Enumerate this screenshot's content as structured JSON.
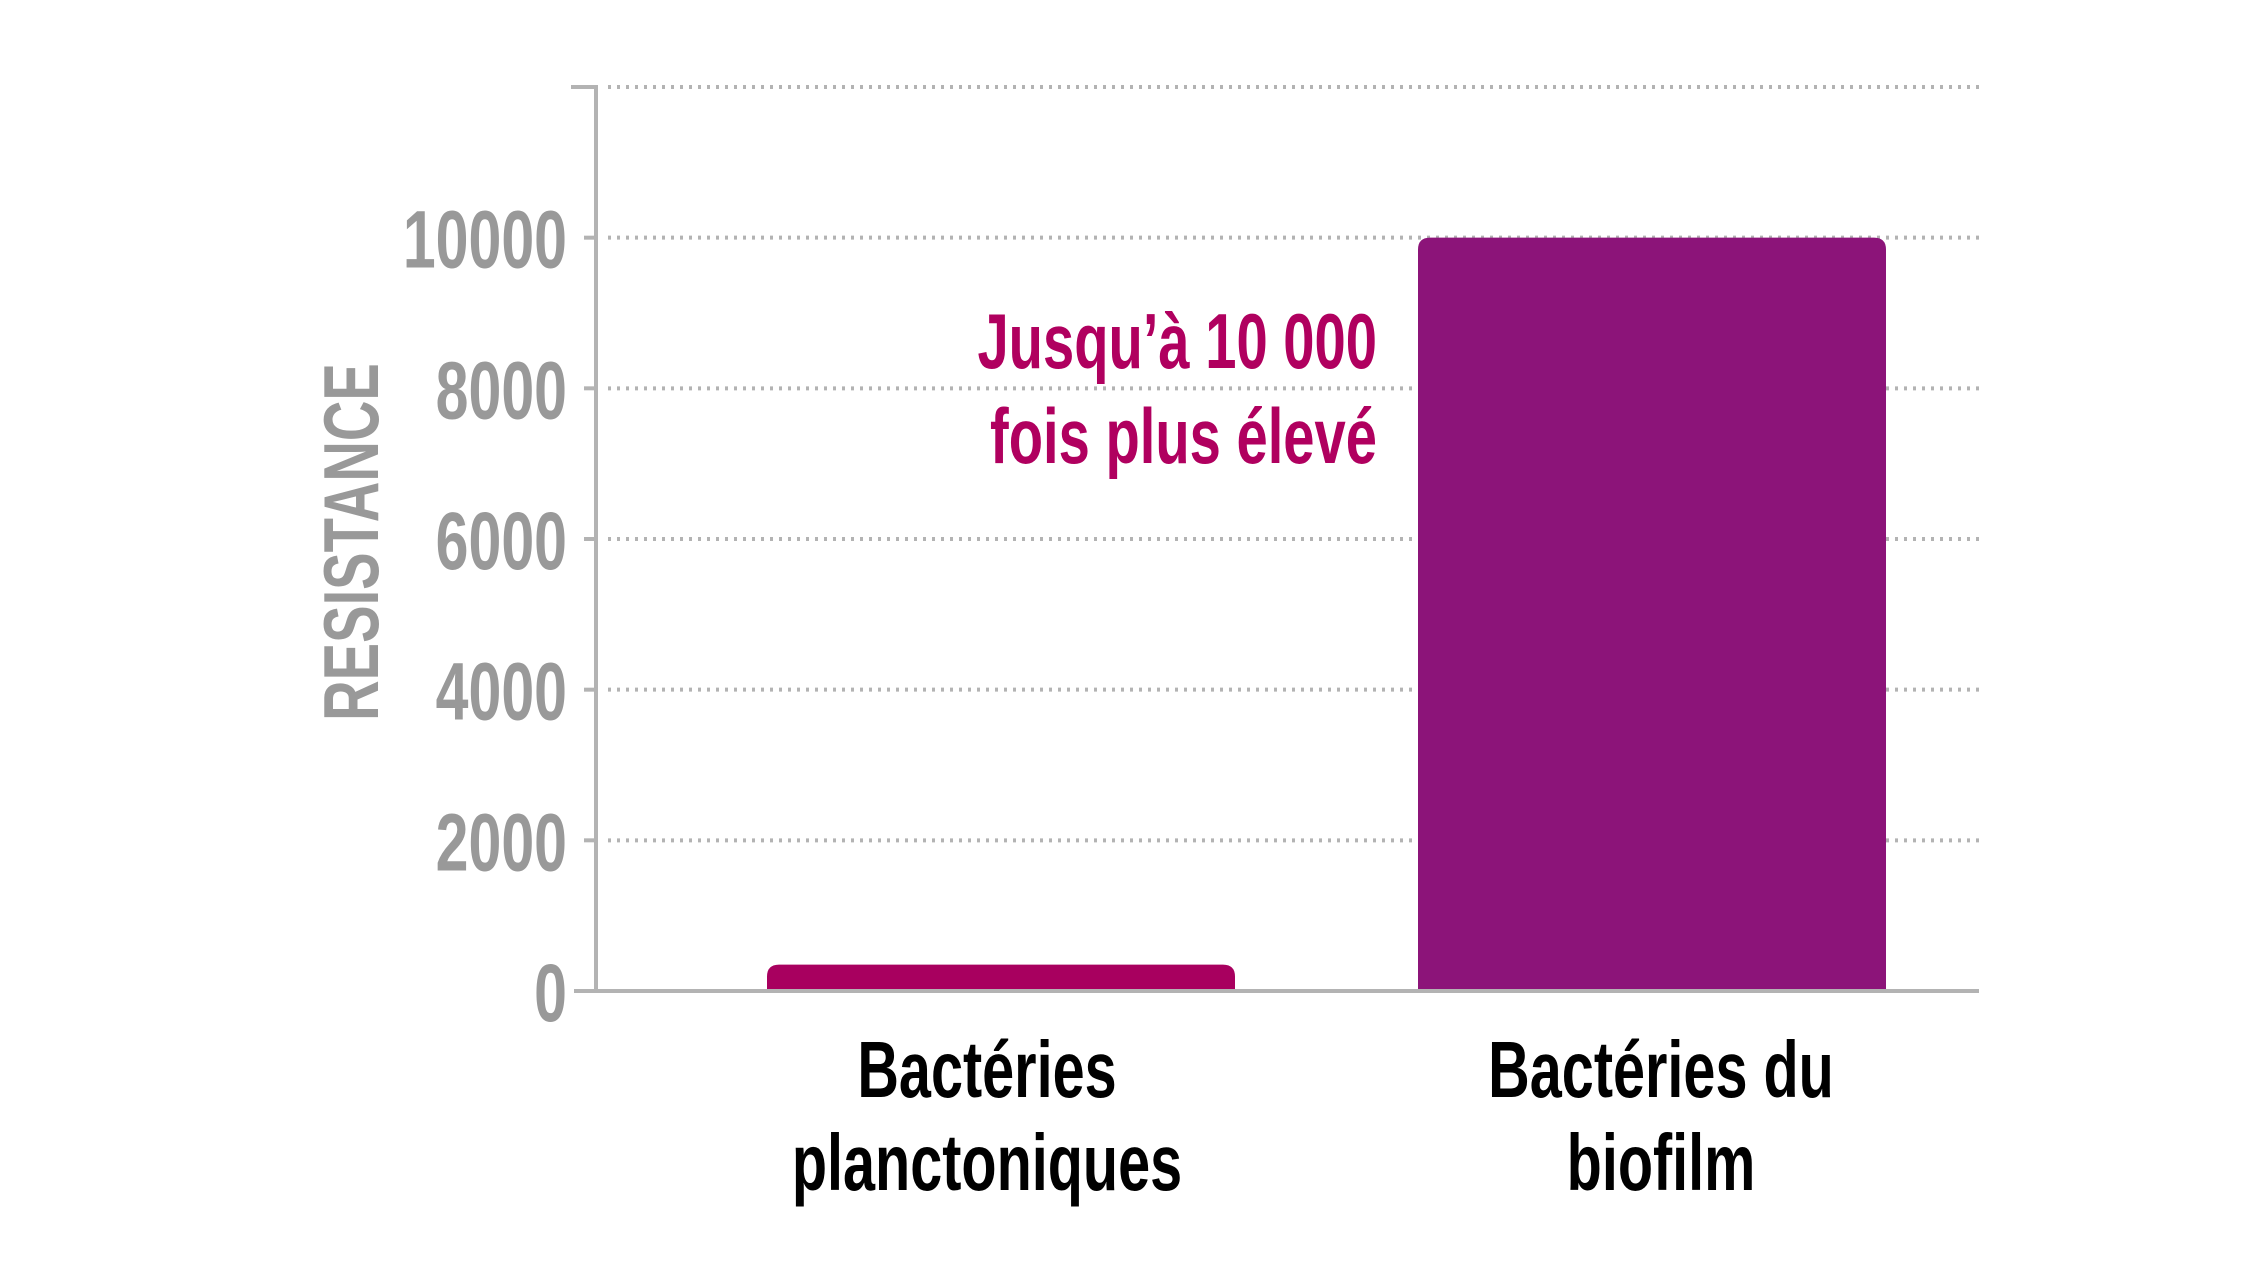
{
  "chart_data": {
    "type": "bar",
    "title": "",
    "xlabel": "",
    "ylabel": "RESISTANCE",
    "ylim": [
      0,
      12000
    ],
    "yticks": [
      0,
      2000,
      4000,
      6000,
      8000,
      10000
    ],
    "grid": true,
    "categories": [
      [
        "Bactéries",
        "planctoniques"
      ],
      [
        "Bactéries du",
        "biofilm"
      ]
    ],
    "values": [
      350,
      10000
    ],
    "bar_colors": [
      "#a8005f",
      "#8c1479"
    ],
    "annotation": [
      "Jusqu’à 10 000",
      "fois plus élevé"
    ],
    "annotation_color": "#b0005f",
    "axis_color": "#b3b3b3",
    "tick_label_color": "#999999"
  }
}
